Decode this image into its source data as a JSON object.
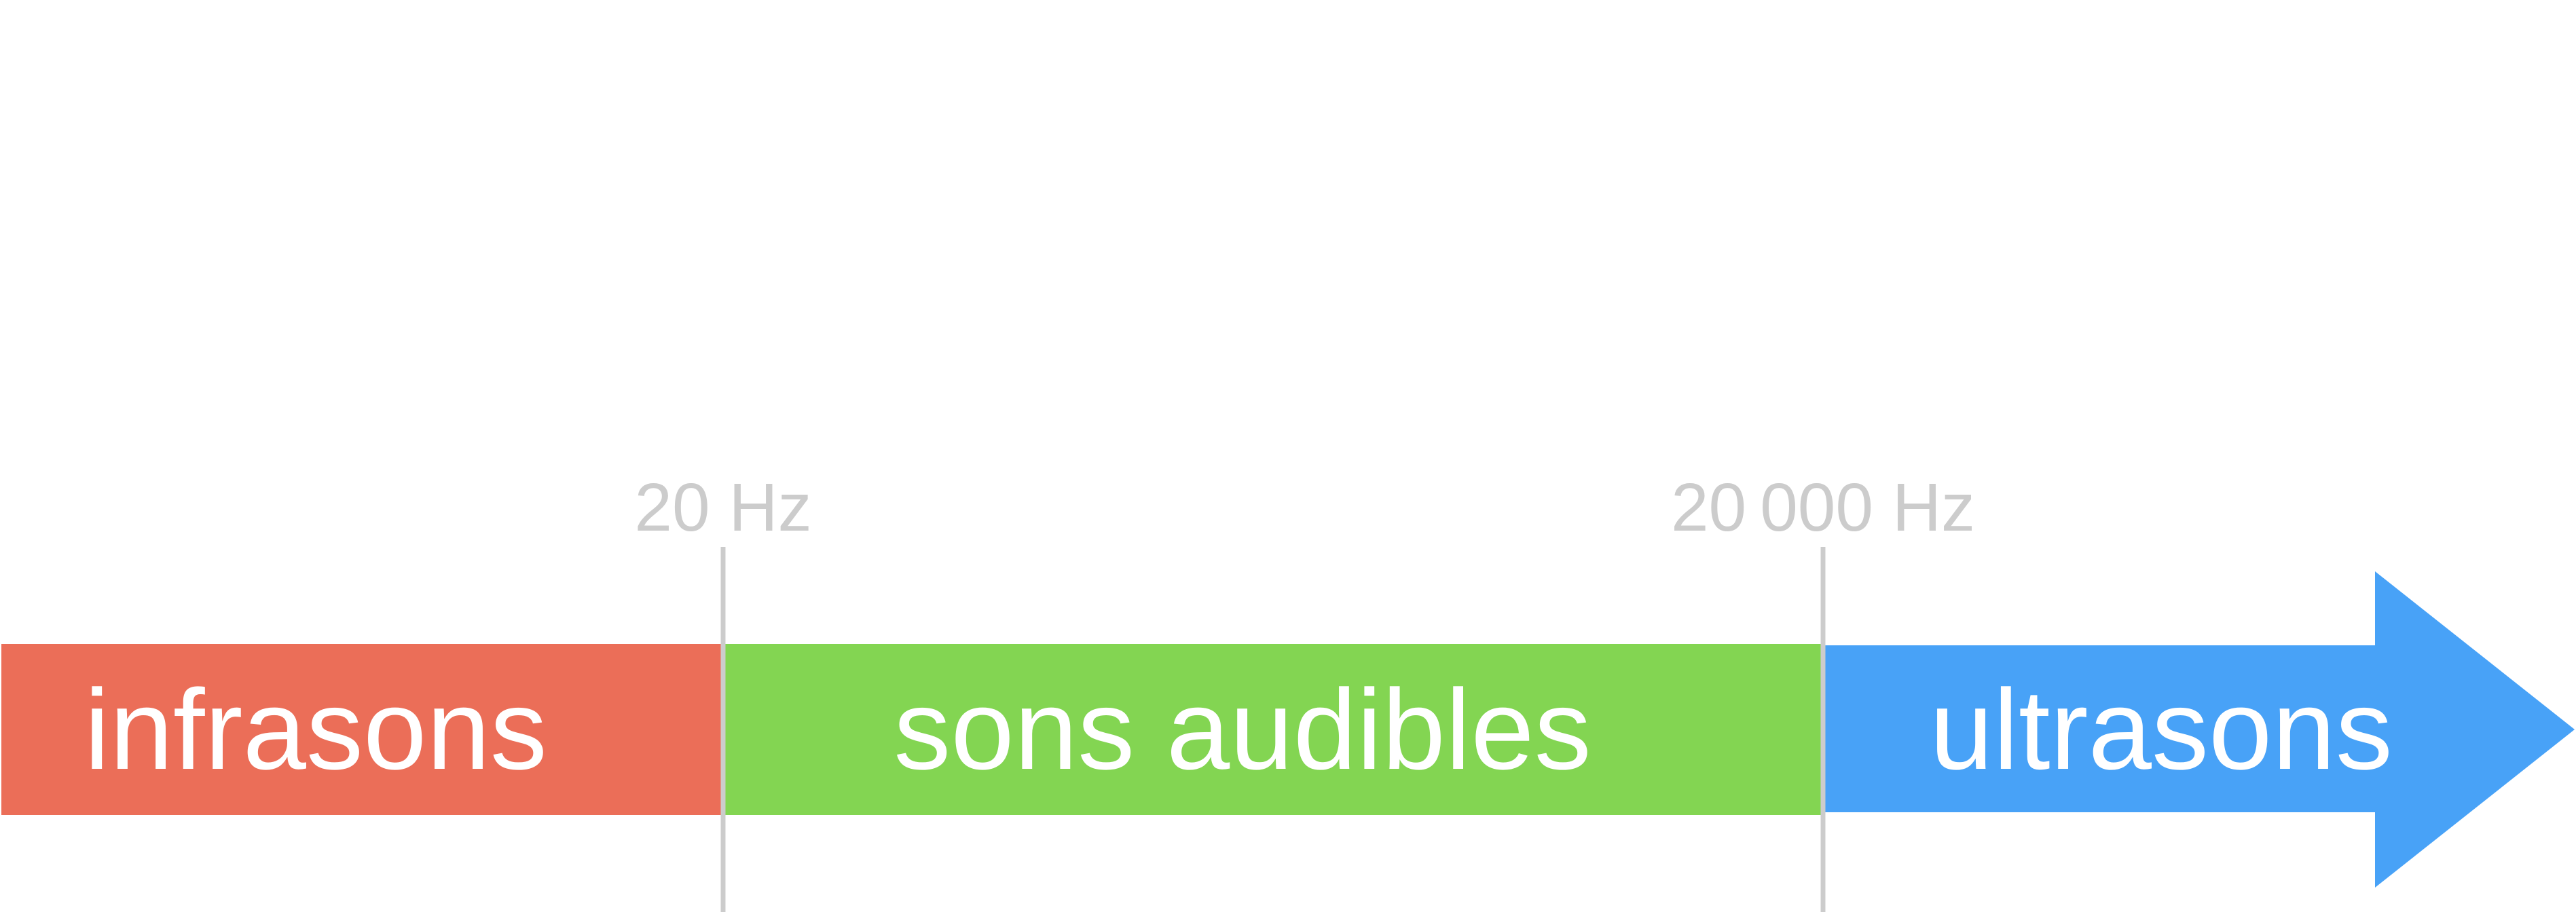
{
  "bands": [
    {
      "label": "infrasons",
      "color": "#eb6e58"
    },
    {
      "label": "sons audibles",
      "color": "#83d552"
    },
    {
      "label": "ultrasons",
      "color": "#48a2f7"
    }
  ],
  "thresholds": [
    {
      "label": "20 Hz"
    },
    {
      "label": "20 000 Hz"
    }
  ],
  "colors": {
    "threshold_line": "#cccccc",
    "band_text": "#ffffff"
  }
}
